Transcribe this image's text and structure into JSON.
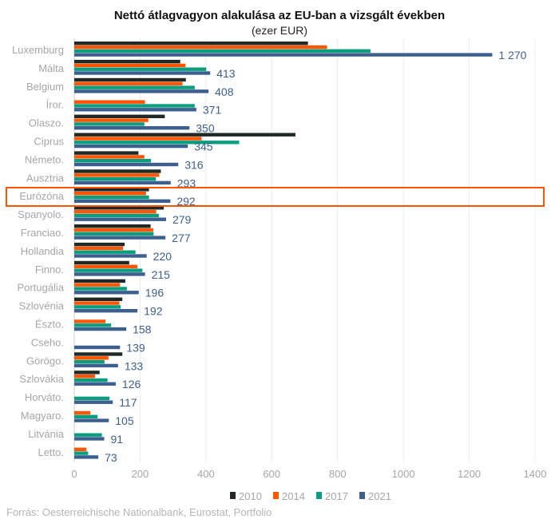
{
  "chart_data": {
    "type": "bar",
    "orientation": "horizontal",
    "title": "Nettó átlagvagyon alakulása az EU-ban a vizsgált években",
    "subtitle": "(ezer EUR)",
    "source": "Forrás: Oesterreichische Nationalbank, Eurostat, Portfolio",
    "xlim": [
      0,
      1400
    ],
    "xticks": [
      0,
      200,
      400,
      600,
      800,
      1000,
      1200,
      1400
    ],
    "grid": true,
    "legend_position": "bottom",
    "highlighted_category": "Eurózóna",
    "highlight_color": "#ff5500",
    "categories": [
      "Luxemburg",
      "Málta",
      "Belgium",
      "Íror.",
      "Olaszo.",
      "Ciprus",
      "Németo.",
      "Ausztria",
      "Eurózóna",
      "Spanyolo.",
      "Franciao.",
      "Hollandia",
      "Finno.",
      "Portugália",
      "Szlovénia",
      "Észto.",
      "Cseho.",
      "Görögo.",
      "Szlovákia",
      "Horváto.",
      "Magyaro.",
      "Litvánia",
      "Letto."
    ],
    "series": [
      {
        "name": "2010",
        "color": "#1f2a26",
        "values": [
          710,
          322,
          339,
          null,
          275,
          672,
          195,
          263,
          227,
          272,
          232,
          153,
          167,
          155,
          146,
          null,
          null,
          146,
          77,
          null,
          null,
          null,
          null
        ]
      },
      {
        "name": "2014",
        "color": "#ff5500",
        "values": [
          768,
          338,
          329,
          215,
          225,
          387,
          213,
          258,
          218,
          249,
          240,
          148,
          192,
          139,
          137,
          95,
          null,
          104,
          63,
          null,
          49,
          null,
          37
        ]
      },
      {
        "name": "2017",
        "color": "#0a9e7e",
        "values": [
          900,
          401,
          366,
          366,
          213,
          501,
          233,
          248,
          227,
          257,
          241,
          186,
          207,
          160,
          141,
          112,
          null,
          92,
          101,
          107,
          71,
          84,
          42
        ]
      },
      {
        "name": "2021",
        "color": "#3d5f8f",
        "values": [
          1270,
          413,
          408,
          371,
          350,
          345,
          316,
          293,
          292,
          279,
          277,
          220,
          215,
          196,
          192,
          158,
          139,
          133,
          126,
          117,
          105,
          91,
          73
        ]
      }
    ],
    "data_labels": [
      "1 270",
      "413",
      "408",
      "371",
      "350",
      "345",
      "316",
      "293",
      "292",
      "279",
      "277",
      "220",
      "215",
      "196",
      "192",
      "158",
      "139",
      "133",
      "126",
      "117",
      "105",
      "91",
      "73"
    ]
  }
}
